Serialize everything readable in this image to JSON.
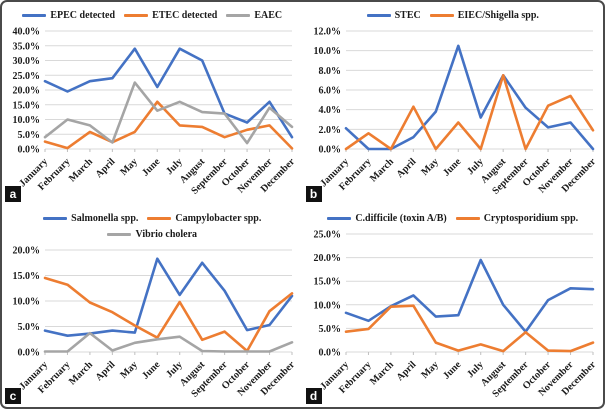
{
  "figure": {
    "colors": {
      "series_blue": "#4472C4",
      "series_orange": "#ED7D31",
      "series_gray": "#A5A5A5",
      "gridline": "#D9D9D9",
      "tick": "#BFBFBF",
      "label_text": "#1a1a1a"
    },
    "panel_badges": {
      "a": "a",
      "b": "b",
      "c": "c",
      "d": "d"
    }
  },
  "chart_data": [
    {
      "type": "line",
      "panel": "a",
      "x": [
        "January",
        "February",
        "March",
        "April",
        "May",
        "June",
        "July",
        "August",
        "September",
        "October",
        "November",
        "December"
      ],
      "series": [
        {
          "name": "EPEC detected",
          "color": "#4472C4",
          "values": [
            23,
            19.5,
            23,
            24,
            34,
            21,
            34,
            30,
            12,
            9,
            16,
            4
          ]
        },
        {
          "name": "ETEC detected",
          "color": "#ED7D31",
          "values": [
            2.5,
            0.3,
            5.8,
            2.3,
            5.8,
            16,
            8,
            7.5,
            4,
            6.5,
            8,
            0.2
          ]
        },
        {
          "name": "EAEC",
          "color": "#A5A5A5",
          "values": [
            4,
            10,
            8,
            2.2,
            22.5,
            13,
            16,
            12.5,
            12,
            2,
            14,
            7.5
          ]
        }
      ],
      "ylim": [
        0,
        40
      ],
      "ytick_step": 5,
      "ytick_format": "percent_1dp",
      "grid": true,
      "legend_position": "top"
    },
    {
      "type": "line",
      "panel": "b",
      "x": [
        "January",
        "February",
        "March",
        "April",
        "May",
        "June",
        "July",
        "August",
        "September",
        "October",
        "November",
        "December"
      ],
      "series": [
        {
          "name": "STEC",
          "color": "#4472C4",
          "values": [
            2.1,
            0,
            0,
            1.2,
            3.8,
            10.5,
            3.2,
            7.5,
            4.2,
            2.2,
            2.7,
            0
          ]
        },
        {
          "name": "EIEC/Shigella spp.",
          "color": "#ED7D31",
          "values": [
            0,
            1.6,
            0,
            4.3,
            0,
            2.7,
            0,
            7.5,
            0,
            4.4,
            5.4,
            1.9
          ]
        }
      ],
      "ylim": [
        0,
        12
      ],
      "ytick_step": 2,
      "ytick_format": "percent_1dp",
      "grid": true,
      "legend_position": "top"
    },
    {
      "type": "line",
      "panel": "c",
      "x": [
        "January",
        "February",
        "March",
        "April",
        "May",
        "June",
        "July",
        "August",
        "September",
        "October",
        "November",
        "December"
      ],
      "series": [
        {
          "name": "Salmonella spp.",
          "color": "#4472C4",
          "values": [
            4.2,
            3.2,
            3.6,
            4.2,
            3.8,
            18.3,
            11.2,
            17.5,
            12,
            4.3,
            5.3,
            11
          ]
        },
        {
          "name": "Campylobacter spp.",
          "color": "#ED7D31",
          "values": [
            14.5,
            13.2,
            9.7,
            7.8,
            5.2,
            2.8,
            9.8,
            2.4,
            4,
            0.2,
            8,
            11.5
          ]
        },
        {
          "name": "Vibrio cholera",
          "color": "#A5A5A5",
          "values": [
            0.1,
            0.1,
            3.7,
            0.3,
            1.8,
            2.5,
            3,
            0.2,
            0.1,
            0.1,
            0.1,
            1.9
          ]
        }
      ],
      "ylim": [
        0,
        20
      ],
      "ytick_step": 5,
      "ytick_format": "percent_1dp",
      "grid": true,
      "legend_position": "top"
    },
    {
      "type": "line",
      "panel": "d",
      "x": [
        "January",
        "February",
        "March",
        "April",
        "May",
        "June",
        "July",
        "August",
        "September",
        "October",
        "November",
        "December"
      ],
      "series": [
        {
          "name": "C.difficile (toxin A/B)",
          "color": "#4472C4",
          "values": [
            8.3,
            6.6,
            9.7,
            12,
            7.5,
            7.8,
            19.5,
            10,
            4.3,
            11,
            13.5,
            13.3
          ]
        },
        {
          "name": "Cryptosporidium spp.",
          "color": "#ED7D31",
          "values": [
            4.3,
            4.9,
            9.6,
            9.8,
            2,
            0.3,
            1.6,
            0.2,
            4.2,
            0.3,
            0.2,
            2
          ]
        }
      ],
      "ylim": [
        0,
        25
      ],
      "ytick_step": 5,
      "ytick_format": "percent_1dp",
      "grid": true,
      "legend_position": "top"
    }
  ]
}
